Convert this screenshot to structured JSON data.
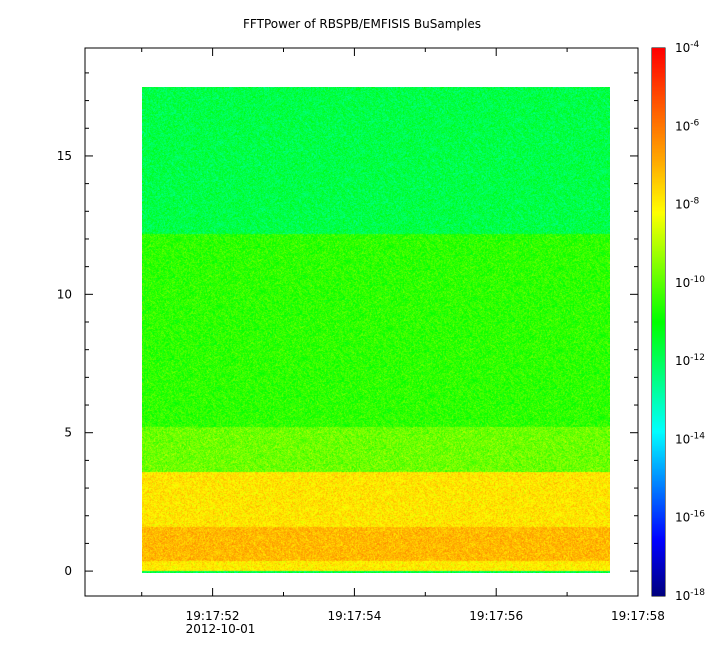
{
  "chart_data": {
    "type": "heatmap",
    "title": "FFTPower of RBSPB/EMFISIS  BuSamples",
    "xlabel": "",
    "ylabel": "",
    "x_tick_labels": [
      "19:17:52",
      "19:17:54",
      "19:17:56",
      "19:17:58"
    ],
    "x_date_label": "2012-10-01",
    "x_tick_seconds": [
      52,
      54,
      56,
      58
    ],
    "xlim_seconds": [
      50.2,
      58.0
    ],
    "data_x_range_seconds": [
      51.0,
      57.6
    ],
    "y_ticks": [
      0,
      5,
      10,
      15
    ],
    "ylim": [
      -0.9,
      18.9
    ],
    "data_y_range": [
      -0.05,
      17.5
    ],
    "colorbar": {
      "scale": "log",
      "range_exp": [
        -18,
        -4
      ],
      "tick_base": "10",
      "tick_exponents": [
        "-4",
        "-6",
        "-8",
        "-10",
        "-12",
        "-14",
        "-16",
        "-18"
      ],
      "colormap": [
        "#00007f",
        "#0000ff",
        "#007fff",
        "#00ffff",
        "#00ff7f",
        "#00ff00",
        "#7fff00",
        "#ffff00",
        "#ffa500",
        "#ff5500",
        "#ff0000"
      ]
    },
    "bands": [
      {
        "y_from": 0.0,
        "y_to": 0.35,
        "log10_power": -7.9
      },
      {
        "y_from": 0.35,
        "y_to": 1.6,
        "log10_power": -7.1
      },
      {
        "y_from": 1.6,
        "y_to": 3.6,
        "log10_power": -7.8
      },
      {
        "y_from": 3.6,
        "y_to": 5.2,
        "log10_power": -9.8
      },
      {
        "y_from": 5.2,
        "y_to": 12.2,
        "log10_power": -10.5
      },
      {
        "y_from": 12.2,
        "y_to": 17.5,
        "log10_power": -11.8
      }
    ]
  }
}
